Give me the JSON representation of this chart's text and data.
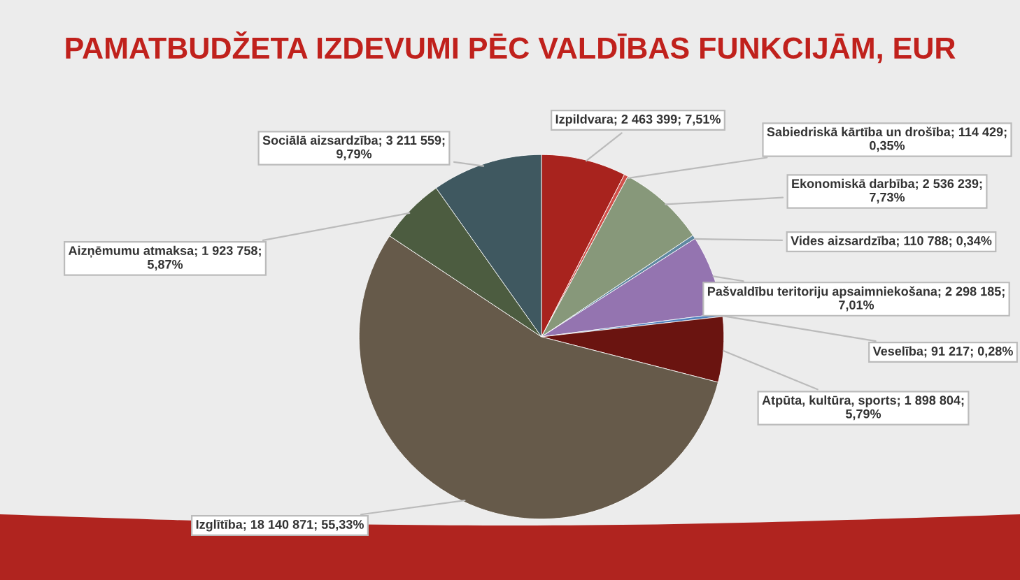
{
  "chart_data": {
    "type": "pie",
    "title": "PAMATBUDŽETA IZDEVUMI PĒC VALDĪBAS FUNKCIJĀM, EUR",
    "categories": [
      "Izpildvara",
      "Sabiedriskā kārtība un drošība",
      "Ekonomiskā darbība",
      "Vides aizsardzība",
      "Pašvaldību teritoriju apsaimniekošana",
      "Veselība",
      "Atpūta, kultūra, sports",
      "Izglītība",
      "Aizņēmumu atmaksa",
      "Sociālā aizsardzība"
    ],
    "values": [
      2463399,
      114429,
      2536239,
      110788,
      2298185,
      91217,
      1898804,
      18140871,
      1923758,
      3211559
    ],
    "value_labels": [
      "2 463 399; 7,51%",
      "114 429; 0,35%",
      "2 536 239; 7,73%",
      "110 788; 0,34%",
      "2 298 185; 7,01%",
      "91 217; 0,28%",
      "1 898 804; 5,79%",
      "18 140 871; 55,33%",
      "1 923 758; 5,87%",
      "3 211 559; 9,79%"
    ],
    "colors": [
      "#a8231e",
      "#d0504a",
      "#87987a",
      "#5f88a0",
      "#9474b0",
      "#4f81bd",
      "#6a1410",
      "#665a4a",
      "#4c5c40",
      "#3f5860"
    ],
    "legend": false
  }
}
